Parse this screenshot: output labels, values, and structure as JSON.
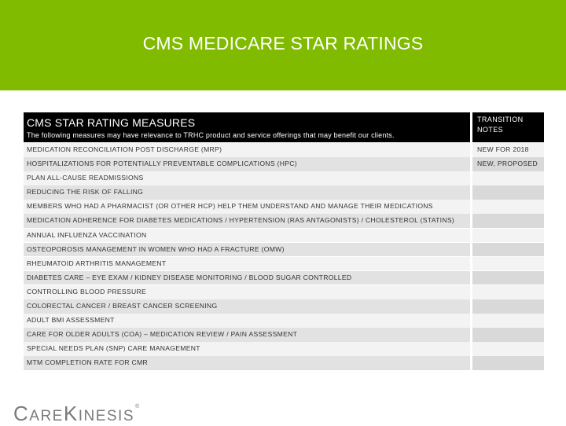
{
  "banner": {
    "title": "CMS MEDICARE STAR RATINGS",
    "color": "#80bb00"
  },
  "table": {
    "header": {
      "title": "CMS STAR RATING MEASURES",
      "subtitle": "The following measures may have relevance to TRHC product and service offerings that may benefit our clients.",
      "notes_label": "TRANSITION NOTES"
    },
    "rows": [
      {
        "measure": "MEDICATION RECONCILIATION POST DISCHARGE (MRP)",
        "note": "NEW FOR 2018"
      },
      {
        "measure": "HOSPITALIZATIONS FOR POTENTIALLY PREVENTABLE COMPLICATIONS (HPC)",
        "note": "NEW, PROPOSED"
      },
      {
        "measure": "PLAN ALL-CAUSE READMISSIONS",
        "note": ""
      },
      {
        "measure": "REDUCING THE RISK OF FALLING",
        "note": ""
      },
      {
        "measure": "MEMBERS WHO HAD A PHARMACIST (OR OTHER HCP) HELP THEM UNDERSTAND AND MANAGE THEIR MEDICATIONS",
        "note": ""
      },
      {
        "measure": "MEDICATION ADHERENCE FOR DIABETES MEDICATIONS / HYPERTENSION (RAS ANTAGONISTS) / CHOLESTEROL (STATINS)",
        "note": ""
      },
      {
        "measure": "ANNUAL INFLUENZA VACCINATION",
        "note": ""
      },
      {
        "measure": "OSTEOPOROSIS MANAGEMENT IN WOMEN WHO HAD A FRACTURE (OMW)",
        "note": ""
      },
      {
        "measure": "RHEUMATOID ARTHRITIS MANAGEMENT",
        "note": ""
      },
      {
        "measure": "DIABETES CARE – EYE EXAM / KIDNEY DISEASE MONITORING / BLOOD SUGAR CONTROLLED",
        "note": ""
      },
      {
        "measure": "CONTROLLING BLOOD PRESSURE",
        "note": ""
      },
      {
        "measure": "COLORECTAL CANCER / BREAST CANCER SCREENING",
        "note": ""
      },
      {
        "measure": "ADULT BMI ASSESSMENT",
        "note": ""
      },
      {
        "measure": "CARE FOR OLDER ADULTS (COA) – MEDICATION REVIEW / PAIN ASSESSMENT",
        "note": ""
      },
      {
        "measure": "SPECIAL NEEDS PLAN (SNP) CARE MANAGEMENT",
        "note": ""
      },
      {
        "measure": "MTM COMPLETION RATE FOR CMR",
        "note": ""
      }
    ]
  },
  "footer": {
    "logo_text": "CareKinesis",
    "logo_mark": "®"
  }
}
